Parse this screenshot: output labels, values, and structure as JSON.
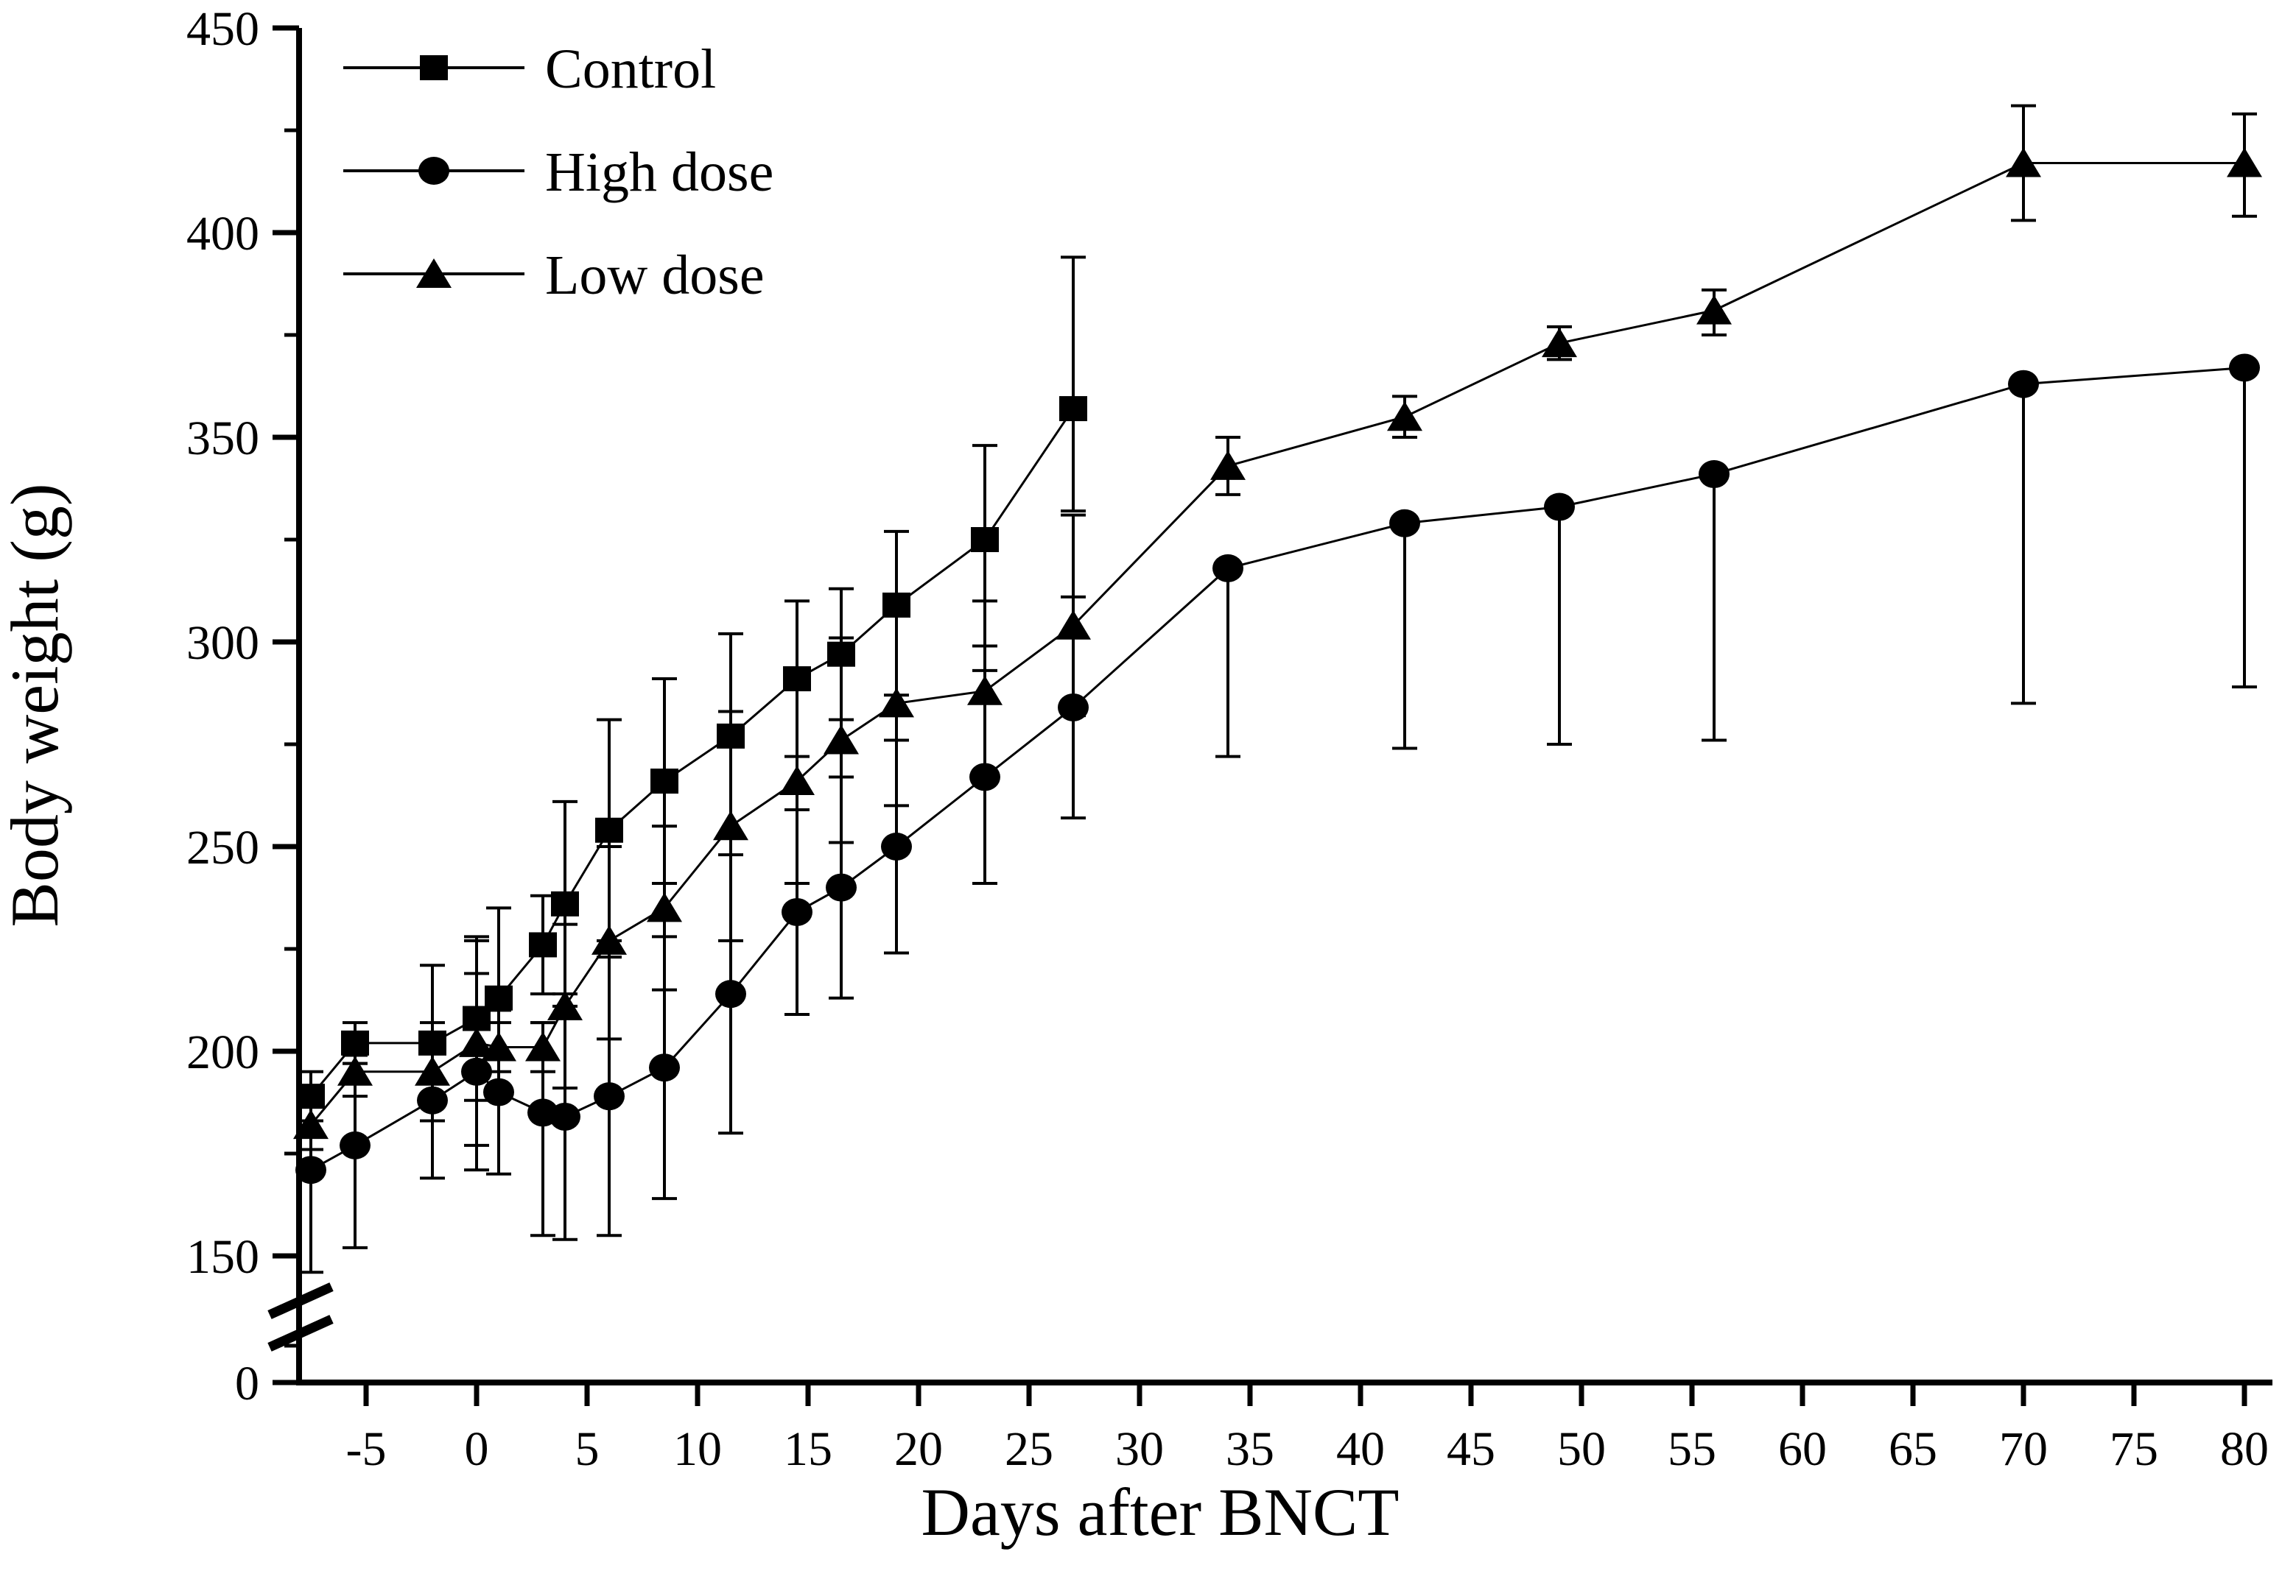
{
  "figure": {
    "background": "#ffffff",
    "ink_color": "#000000"
  },
  "chart_data": {
    "type": "line",
    "title": "",
    "xlabel": "Days after BNCT",
    "ylabel": "Body weight (g)",
    "x_ticks": [
      -5,
      0,
      5,
      10,
      15,
      20,
      25,
      30,
      35,
      40,
      45,
      50,
      55,
      60,
      65,
      70,
      75,
      80
    ],
    "y_ticks_major": [
      450,
      400,
      350,
      300,
      250,
      200,
      150
    ],
    "y_ticks_minor": [
      425,
      375,
      325,
      275,
      225,
      175
    ],
    "y_origin_tick_label": "0",
    "y_axis_break": true,
    "xlim": [
      -8,
      81
    ],
    "ylim": [
      150,
      450
    ],
    "grid": false,
    "legend_position": "top-left",
    "marker_shapes": {
      "Control": "square",
      "High dose": "circle",
      "Low dose": "triangle"
    },
    "series": [
      {
        "name": "Control",
        "marker": "square",
        "points_format": [
          "day",
          "body_weight_g",
          "err_up",
          "err_down"
        ],
        "points": [
          [
            -7.5,
            189,
            6,
            6
          ],
          [
            -5.5,
            202,
            5,
            5
          ],
          [
            -2,
            202,
            19,
            19
          ],
          [
            0,
            208,
            20,
            20
          ],
          [
            1,
            213,
            22,
            22
          ],
          [
            3,
            226,
            12,
            12
          ],
          [
            4,
            236,
            25,
            25
          ],
          [
            6,
            254,
            27,
            27
          ],
          [
            8.5,
            266,
            25,
            25
          ],
          [
            11.5,
            277,
            25,
            25
          ],
          [
            14.5,
            291,
            19,
            19
          ],
          [
            16.5,
            297,
            16,
            16
          ],
          [
            19,
            309,
            18,
            22
          ],
          [
            23,
            325,
            23,
            26
          ],
          [
            27,
            357,
            37,
            25
          ]
        ]
      },
      {
        "name": "High dose",
        "marker": "circle",
        "points_format": [
          "day",
          "body_weight_g",
          "err_up",
          "err_down"
        ],
        "points": [
          [
            -7.5,
            171,
            20,
            25
          ],
          [
            -5.5,
            177,
            20,
            25
          ],
          [
            -2,
            188,
            19,
            19
          ],
          [
            0,
            195,
            24,
            24
          ],
          [
            1,
            190,
            20,
            20
          ],
          [
            3,
            185,
            22,
            30
          ],
          [
            4,
            184,
            30,
            30
          ],
          [
            6,
            189,
            34,
            34
          ],
          [
            8.5,
            196,
            32,
            32
          ],
          [
            11.5,
            214,
            34,
            34
          ],
          [
            14.5,
            234,
            25,
            25
          ],
          [
            16.5,
            240,
            27,
            27
          ],
          [
            19,
            250,
            26,
            26
          ],
          [
            23,
            267,
            26,
            26
          ],
          [
            27,
            284,
            27,
            27
          ],
          [
            34,
            318,
            0,
            46
          ],
          [
            42,
            329,
            0,
            55
          ],
          [
            49,
            333,
            0,
            58
          ],
          [
            56,
            341,
            0,
            65
          ],
          [
            70,
            363,
            0,
            78
          ],
          [
            80,
            367,
            0,
            78
          ]
        ]
      },
      {
        "name": "Low dose",
        "marker": "triangle",
        "points_format": [
          "day",
          "body_weight_g",
          "err_up",
          "err_down"
        ],
        "points": [
          [
            -7.5,
            182,
            6,
            6
          ],
          [
            -5.5,
            195,
            4,
            6
          ],
          [
            -2,
            195,
            6,
            6
          ],
          [
            0,
            202,
            25,
            25
          ],
          [
            1,
            201,
            6,
            6
          ],
          [
            3,
            201,
            6,
            6
          ],
          [
            4,
            211,
            20,
            20
          ],
          [
            6,
            227,
            23,
            24
          ],
          [
            8.5,
            235,
            20,
            20
          ],
          [
            11.5,
            255,
            28,
            28
          ],
          [
            14.5,
            266,
            25,
            25
          ],
          [
            16.5,
            276,
            25,
            25
          ],
          [
            19,
            285,
            25,
            25
          ],
          [
            23,
            288,
            22,
            22
          ],
          [
            27,
            304,
            27,
            22
          ],
          [
            34,
            343,
            7,
            7
          ],
          [
            42,
            355,
            5,
            5
          ],
          [
            49,
            373,
            4,
            4
          ],
          [
            56,
            381,
            5,
            6
          ],
          [
            70,
            417,
            14,
            14
          ],
          [
            80,
            417,
            12,
            13
          ]
        ]
      }
    ]
  }
}
